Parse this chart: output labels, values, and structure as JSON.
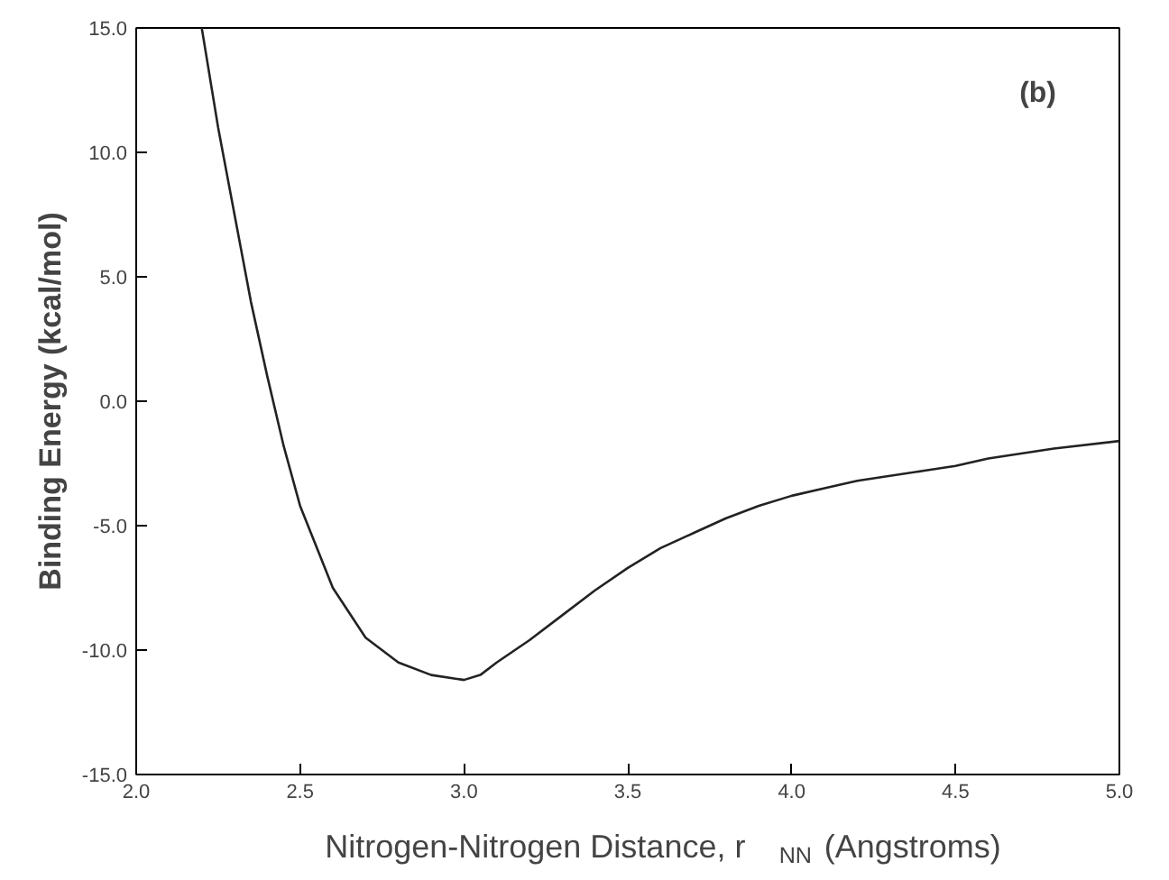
{
  "chart_data": {
    "type": "line",
    "xlabel": "Nitrogen-Nitrogen Distance, r$_{NN}$ (Angstroms)",
    "ylabel": "Binding Energy (kcal/mol)",
    "annotations": [
      "(b)"
    ],
    "x": [
      2.2,
      2.25,
      2.3,
      2.35,
      2.4,
      2.45,
      2.5,
      2.6,
      2.7,
      2.8,
      2.9,
      3.0,
      3.05,
      3.1,
      3.2,
      3.3,
      3.4,
      3.5,
      3.6,
      3.7,
      3.8,
      3.9,
      4.0,
      4.1,
      4.2,
      4.4,
      4.5,
      4.6,
      4.8,
      5.0
    ],
    "series": [
      {
        "color": "#222222",
        "values": [
          15,
          11,
          7.5,
          4,
          1,
          -1.8,
          -4.2,
          -7.5,
          -9.5,
          -10.5,
          -11.0,
          -11.2,
          -11.0,
          -10.5,
          -9.6,
          -8.6,
          -7.6,
          -6.7,
          -5.9,
          -5.3,
          -4.7,
          -4.2,
          -3.8,
          -3.5,
          -3.2,
          -2.8,
          -2.6,
          -2.3,
          -1.9,
          -1.6
        ]
      }
    ],
    "xlim": [
      2.0,
      5.0
    ],
    "ylim": [
      -15.0,
      15.0
    ],
    "xticks": [
      {
        "value": 2.0,
        "label": "2.0"
      },
      {
        "value": 2.5,
        "label": "2.5"
      },
      {
        "value": 3.0,
        "label": "3.0"
      },
      {
        "value": 3.5,
        "label": "3.5"
      },
      {
        "value": 4.0,
        "label": "4.0"
      },
      {
        "value": 4.5,
        "label": "4.5"
      },
      {
        "value": 5.0,
        "label": "5.0"
      }
    ],
    "yticks": [
      {
        "value": -15.0,
        "label": "-15.0"
      },
      {
        "value": -10.0,
        "label": "-10.0"
      },
      {
        "value": -5.0,
        "label": "-5.0"
      },
      {
        "value": 0.0,
        "label": "0.0"
      },
      {
        "value": 5.0,
        "label": "5.0"
      },
      {
        "value": 10.0,
        "label": "10.0"
      },
      {
        "value": 15.0,
        "label": "15.0"
      }
    ],
    "grid": false,
    "marker": "none",
    "line_style": "solid"
  }
}
